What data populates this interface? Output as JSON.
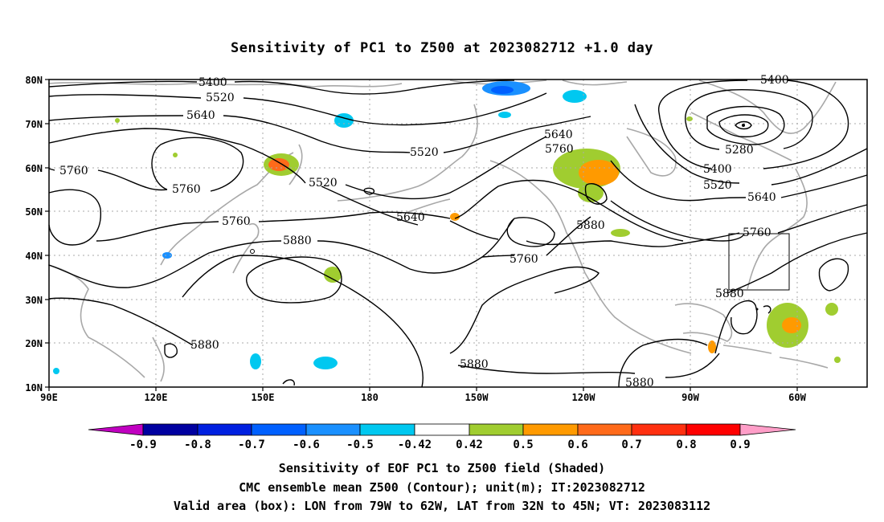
{
  "title": "Sensitivity of PC1 to Z500 at 2023082712 +1.0 day",
  "map": {
    "lon_labels": [
      "90E",
      "120E",
      "150E",
      "180",
      "150W",
      "120W",
      "90W",
      "60W"
    ],
    "lat_labels": [
      "80N",
      "70N",
      "60N",
      "50N",
      "40N",
      "30N",
      "20N",
      "10N"
    ],
    "grid": "dotted",
    "region": {
      "lon_from": "90E",
      "lon_to": "50W",
      "lat_from": "10N",
      "lat_to": "80N"
    }
  },
  "contours": {
    "unit": "m",
    "labels": [
      "5400",
      "5520",
      "5640",
      "5760",
      "5760",
      "5520",
      "5520",
      "5640",
      "5760",
      "5880",
      "5640",
      "5760",
      "5880",
      "5760",
      "5280",
      "5400",
      "5520",
      "5640",
      "5760",
      "5880",
      "5880",
      "5880",
      "5880",
      "5400"
    ]
  },
  "colorbar": {
    "labels": [
      "-0.9",
      "-0.8",
      "-0.7",
      "-0.6",
      "-0.5",
      "-0.42",
      "0.42",
      "0.5",
      "0.6",
      "0.7",
      "0.8",
      "0.9"
    ],
    "colors": [
      "#c000c0",
      "#0000a0",
      "#0020e0",
      "#0060ff",
      "#1a90ff",
      "#00c8f0",
      "#ffffff",
      "#a0cd30",
      "#ff9a00",
      "#ff6a1a",
      "#ff3010",
      "#ff0000",
      "#ff9ec8"
    ]
  },
  "captions": {
    "line1": "Sensitivity of EOF PC1 to Z500 field (Shaded)",
    "line2": "CMC ensemble mean Z500 (Contour); unit(m); IT:2023082712",
    "line3": "Valid area (box): LON from 79W to 62W, LAT from 32N to 45N; VT: 2023083112"
  },
  "valid_area": {
    "lon_from": "79W",
    "lon_to": "62W",
    "lat_from": "32N",
    "lat_to": "45N"
  }
}
